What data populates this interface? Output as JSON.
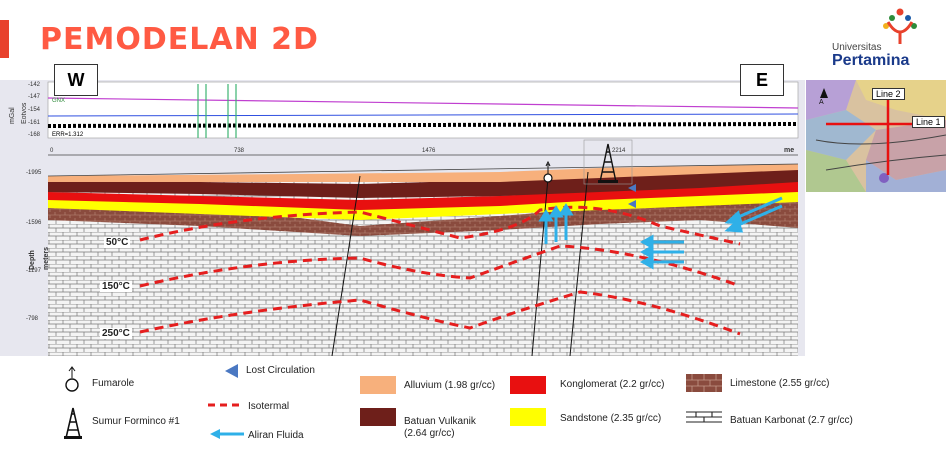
{
  "slide": {
    "title": "PEMODELAN 2D",
    "accent_color": "#ff5a43"
  },
  "logo": {
    "line1": "Universitas",
    "line2": "Pertamina"
  },
  "profile": {
    "west_label": "W",
    "east_label": "E",
    "grav_axis_label": "mGal",
    "grav_axis_label2": "Eotvos",
    "grav_ticks": [
      "-142",
      "-147",
      "-154",
      "-161",
      "-168"
    ],
    "grav_legend": "GNX",
    "err_text": "ERR=1.312",
    "x_ticks": [
      "0",
      "738",
      "1476",
      "2214"
    ],
    "x_unit": "me",
    "depth_axis_label": "Depth",
    "depth_axis_label2": "meters",
    "depth_ticks": [
      "-1995",
      "-1596",
      "-1197",
      "-798"
    ],
    "isotherm_labels": [
      "50°C",
      "150°C",
      "250°C"
    ]
  },
  "map": {
    "line2_label": "Line 2",
    "line1_label": "Line 1",
    "north_label": "A"
  },
  "legend": {
    "fumarole": "Fumarole",
    "well": "Sumur Forminco #1",
    "lost_circulation": "Lost Circulation",
    "isotermal": "Isotermal",
    "aliran_fluida": "Aliran Fluida",
    "alluvium": "Alluvium (1.98 gr/cc)",
    "batuan_vulkanik_1": "Batuan Vulkanik",
    "batuan_vulkanik_2": "(2.64 gr/cc)",
    "konglomerat": "Konglomerat (2.2 gr/cc)",
    "sandstone": "Sandstone (2.35 gr/cc)",
    "limestone": "Limestone (2.55 gr/cc)",
    "batuan_karbonat": "Batuan Karbonat (2.7 gr/cc)"
  },
  "colors": {
    "alluvium": "#f7b07c",
    "vulkanik": "#6e1f1a",
    "konglomerat": "#e81010",
    "sandstone": "#ffff00",
    "limestone": "#8a4b3e",
    "isotherm": "#e51e1e",
    "fluid": "#2fb0e8",
    "lost_circ": "#4a78c2"
  }
}
